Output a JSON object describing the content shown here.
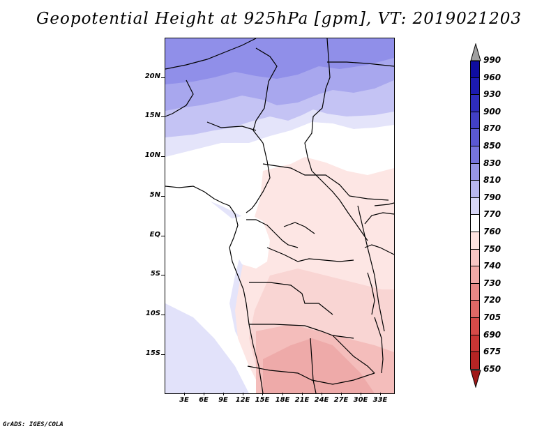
{
  "title": "Geopotential Height at 925hPa [gpm], VT: 2019021203",
  "footer": "GrADS: IGES/COLA",
  "axes": {
    "lat_labels": [
      "20N",
      "15N",
      "10N",
      "5N",
      "EQ",
      "5S",
      "10S",
      "15S"
    ],
    "lon_labels": [
      "3E",
      "6E",
      "9E",
      "12E",
      "15E",
      "18E",
      "21E",
      "24E",
      "27E",
      "30E",
      "33E"
    ]
  },
  "colorbar": {
    "labels": [
      "990",
      "960",
      "930",
      "900",
      "870",
      "850",
      "830",
      "810",
      "790",
      "770",
      "760",
      "750",
      "740",
      "730",
      "720",
      "705",
      "690",
      "675",
      "650"
    ],
    "colors": [
      "#0f0da0",
      "#1c1ab0",
      "#2e2cbc",
      "#4240c6",
      "#5a58d2",
      "#7674dc",
      "#9796e6",
      "#b8b7ef",
      "#d7d6f6",
      "#ffffff",
      "#fde2e0",
      "#f7c5c3",
      "#f0a8a6",
      "#e88886",
      "#df6866",
      "#d54a48",
      "#c83534",
      "#b52424"
    ],
    "top_arrow_color": "#a0a0a0",
    "bottom_arrow_color": "#a01818"
  },
  "map_colors": {
    "h800": "#8f8eea",
    "h790": "#a9a8ef",
    "h780": "#c6c5f4",
    "h770": "#e2e2fa",
    "h760": "#ffffff",
    "h750": "#fde6e4",
    "h745": "#f9d3d1",
    "h740": "#f4bdbb",
    "h735": "#ee abaa"
  }
}
